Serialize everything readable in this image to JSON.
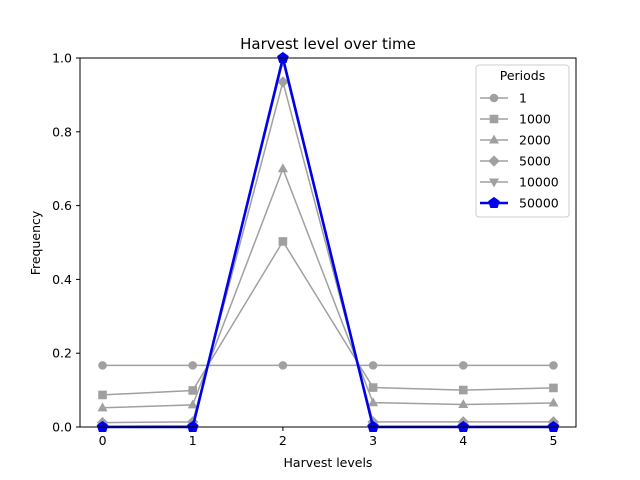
{
  "chart_data": {
    "type": "line",
    "title": "Harvest level over time",
    "xlabel": "Harvest levels",
    "ylabel": "Frequency",
    "x": [
      0,
      1,
      2,
      3,
      4,
      5
    ],
    "xlim": [
      -0.25,
      5.25
    ],
    "ylim": [
      0,
      1.0
    ],
    "xticks": [
      "0",
      "1",
      "2",
      "3",
      "4",
      "5"
    ],
    "yticks": [
      "0.0",
      "0.2",
      "0.4",
      "0.6",
      "0.8",
      "1.0"
    ],
    "grid": false,
    "legend": {
      "title": "Periods",
      "placement": "top-right"
    },
    "series": [
      {
        "name": "1",
        "values": [
          0.167,
          0.167,
          0.167,
          0.167,
          0.167,
          0.167
        ],
        "marker": "circle",
        "color": "#a0a0a0"
      },
      {
        "name": "1000",
        "values": [
          0.087,
          0.099,
          0.503,
          0.107,
          0.1,
          0.106
        ],
        "marker": "square",
        "color": "#a0a0a0"
      },
      {
        "name": "2000",
        "values": [
          0.052,
          0.06,
          0.7,
          0.066,
          0.061,
          0.065
        ],
        "marker": "triangle-up",
        "color": "#a0a0a0"
      },
      {
        "name": "5000",
        "values": [
          0.012,
          0.014,
          0.935,
          0.014,
          0.014,
          0.014
        ],
        "marker": "diamond",
        "color": "#a0a0a0"
      },
      {
        "name": "10000",
        "values": [
          0.002,
          0.003,
          0.99,
          0.002,
          0.002,
          0.002
        ],
        "marker": "triangle-down",
        "color": "#a0a0a0"
      },
      {
        "name": "50000",
        "values": [
          0.0,
          0.0,
          1.0,
          0.0,
          0.0,
          0.0
        ],
        "marker": "pentagon",
        "color": "#0000ee",
        "highlight": true
      }
    ]
  }
}
